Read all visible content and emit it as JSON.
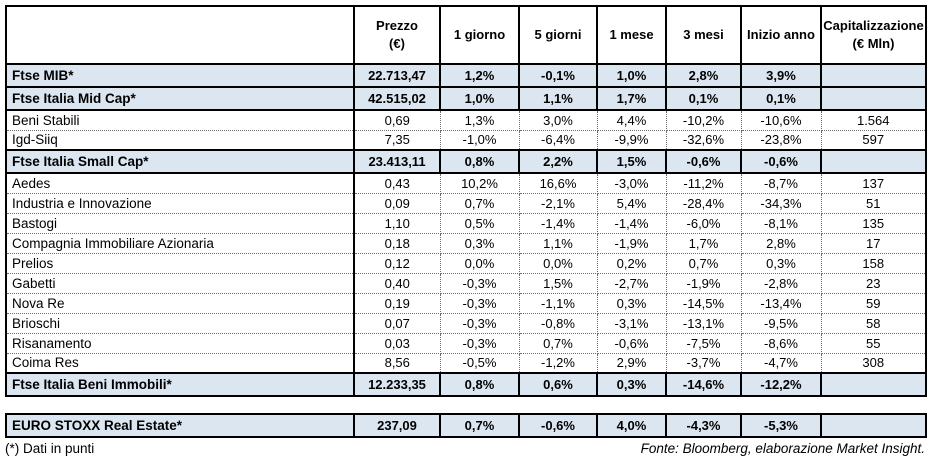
{
  "chart_data": {
    "type": "table",
    "columns": [
      "",
      "Prezzo\n(€)",
      "1 giorno",
      "5 giorni",
      "1 mese",
      "3 mesi",
      "Inizio anno",
      "Capitalizzazione\n(€ Mln)"
    ],
    "rows": [
      {
        "label": "Ftse MIB*",
        "type": "index",
        "values": [
          "22.713,47",
          "1,2%",
          "-0,1%",
          "1,0%",
          "2,8%",
          "3,9%",
          ""
        ]
      },
      {
        "label": "Ftse Italia Mid Cap*",
        "type": "index",
        "values": [
          "42.515,02",
          "1,0%",
          "1,1%",
          "1,7%",
          "0,1%",
          "0,1%",
          ""
        ]
      },
      {
        "label": "Beni Stabili",
        "type": "stock",
        "values": [
          "0,69",
          "1,3%",
          "3,0%",
          "4,4%",
          "-10,2%",
          "-10,6%",
          "1.564"
        ]
      },
      {
        "label": "Igd-Siiq",
        "type": "stock",
        "values": [
          "7,35",
          "-1,0%",
          "-6,4%",
          "-9,9%",
          "-32,6%",
          "-23,8%",
          "597"
        ]
      },
      {
        "label": "Ftse Italia Small Cap*",
        "type": "index",
        "values": [
          "23.413,11",
          "0,8%",
          "2,2%",
          "1,5%",
          "-0,6%",
          "-0,6%",
          ""
        ]
      },
      {
        "label": "Aedes",
        "type": "stock",
        "values": [
          "0,43",
          "10,2%",
          "16,6%",
          "-3,0%",
          "-11,2%",
          "-8,7%",
          "137"
        ]
      },
      {
        "label": "Industria e Innovazione",
        "type": "stock",
        "values": [
          "0,09",
          "0,7%",
          "-2,1%",
          "5,4%",
          "-28,4%",
          "-34,3%",
          "51"
        ]
      },
      {
        "label": "Bastogi",
        "type": "stock",
        "values": [
          "1,10",
          "0,5%",
          "-1,4%",
          "-1,4%",
          "-6,0%",
          "-8,1%",
          "135"
        ]
      },
      {
        "label": "Compagnia Immobiliare Azionaria",
        "type": "stock",
        "values": [
          "0,18",
          "0,3%",
          "1,1%",
          "-1,9%",
          "1,7%",
          "2,8%",
          "17"
        ]
      },
      {
        "label": "Prelios",
        "type": "stock",
        "values": [
          "0,12",
          "0,0%",
          "0,0%",
          "0,2%",
          "0,7%",
          "0,3%",
          "158"
        ]
      },
      {
        "label": "Gabetti",
        "type": "stock",
        "values": [
          "0,40",
          "-0,3%",
          "1,5%",
          "-2,7%",
          "-1,9%",
          "-2,8%",
          "23"
        ]
      },
      {
        "label": "Nova Re",
        "type": "stock",
        "values": [
          "0,19",
          "-0,3%",
          "-1,1%",
          "0,3%",
          "-14,5%",
          "-13,4%",
          "59"
        ]
      },
      {
        "label": "Brioschi",
        "type": "stock",
        "values": [
          "0,07",
          "-0,3%",
          "-0,8%",
          "-3,1%",
          "-13,1%",
          "-9,5%",
          "58"
        ]
      },
      {
        "label": "Risanamento",
        "type": "stock",
        "values": [
          "0,03",
          "-0,3%",
          "0,7%",
          "-0,6%",
          "-7,5%",
          "-8,6%",
          "55"
        ]
      },
      {
        "label": "Coima Res",
        "type": "stock",
        "values": [
          "8,56",
          "-0,5%",
          "-1,2%",
          "2,9%",
          "-3,7%",
          "-4,7%",
          "308"
        ]
      },
      {
        "label": "Ftse Italia Beni Immobili*",
        "type": "index",
        "values": [
          "12.233,35",
          "0,8%",
          "0,6%",
          "0,3%",
          "-14,6%",
          "-12,2%",
          ""
        ]
      }
    ],
    "separate_rows": [
      {
        "label": "EURO STOXX Real Estate*",
        "type": "index",
        "values": [
          "237,09",
          "0,7%",
          "-0,6%",
          "4,0%",
          "-4,3%",
          "-5,3%",
          ""
        ]
      }
    ],
    "footnote": "(*) Dati in punti",
    "source": "Fonte: Bloomberg, elaborazione Market Insight.",
    "layout": {
      "index_row_bg": "#dce6f1",
      "border_color": "#000000",
      "grid": "dotted-inner-solid-index"
    }
  }
}
